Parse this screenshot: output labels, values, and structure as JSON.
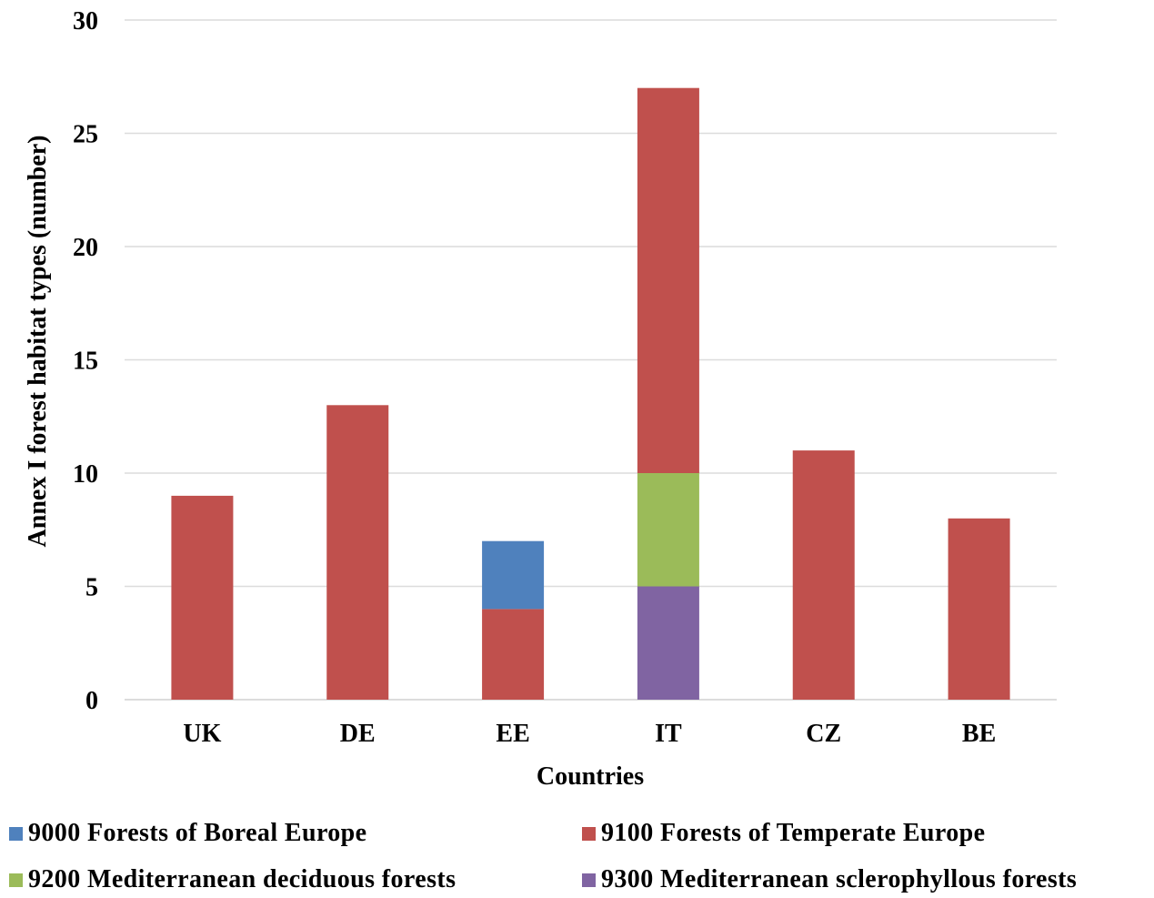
{
  "chart_data": {
    "type": "bar",
    "stacked": true,
    "title": "",
    "xlabel": "Countries",
    "ylabel": "Annex I forest habitat types (number)",
    "categories": [
      "UK",
      "DE",
      "EE",
      "IT",
      "CZ",
      "BE"
    ],
    "ylim": [
      0,
      30
    ],
    "yticks": [
      0,
      5,
      10,
      15,
      20,
      25,
      30
    ],
    "grid": true,
    "legend_position": "bottom",
    "series": [
      {
        "name": "9300  Mediterranean sclerophyllous forests",
        "color": "#8064a2",
        "values": [
          0,
          0,
          0,
          5,
          0,
          0
        ]
      },
      {
        "name": "9200  Mediterranean deciduous forests",
        "color": "#9bbb59",
        "values": [
          0,
          0,
          0,
          5,
          0,
          0
        ]
      },
      {
        "name": "9100  Forests of Temperate Europe",
        "color": "#c0504d",
        "values": [
          9,
          13,
          4,
          17,
          11,
          8
        ]
      },
      {
        "name": "9000 Forests of Boreal Europe",
        "color": "#4f81bd",
        "values": [
          0,
          0,
          3,
          0,
          0,
          0
        ]
      }
    ],
    "legend_order": [
      3,
      2,
      1,
      0
    ]
  }
}
